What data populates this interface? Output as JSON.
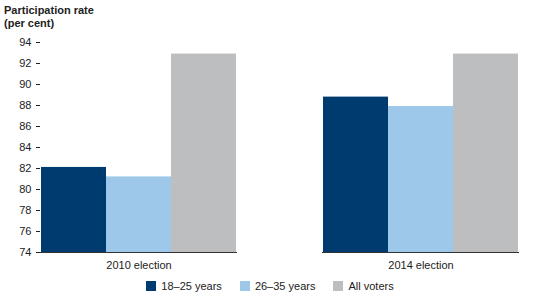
{
  "chart_data": {
    "type": "bar",
    "y_label": "Participation rate (per cent)",
    "categories": [
      "2010 election",
      "2014 election"
    ],
    "series": [
      {
        "name": "18–25 years",
        "color": "#003b6f",
        "values": [
          82.1,
          88.8
        ]
      },
      {
        "name": "26–35 years",
        "color": "#9dc8ea",
        "values": [
          81.2,
          87.9
        ]
      },
      {
        "name": "All voters",
        "color": "#bdbec0",
        "values": [
          92.9,
          92.9
        ]
      }
    ],
    "ylim": [
      74,
      94
    ],
    "yticks": [
      74,
      76,
      78,
      80,
      82,
      84,
      86,
      88,
      90,
      92,
      94
    ],
    "grid": false,
    "legend": "bottom"
  }
}
